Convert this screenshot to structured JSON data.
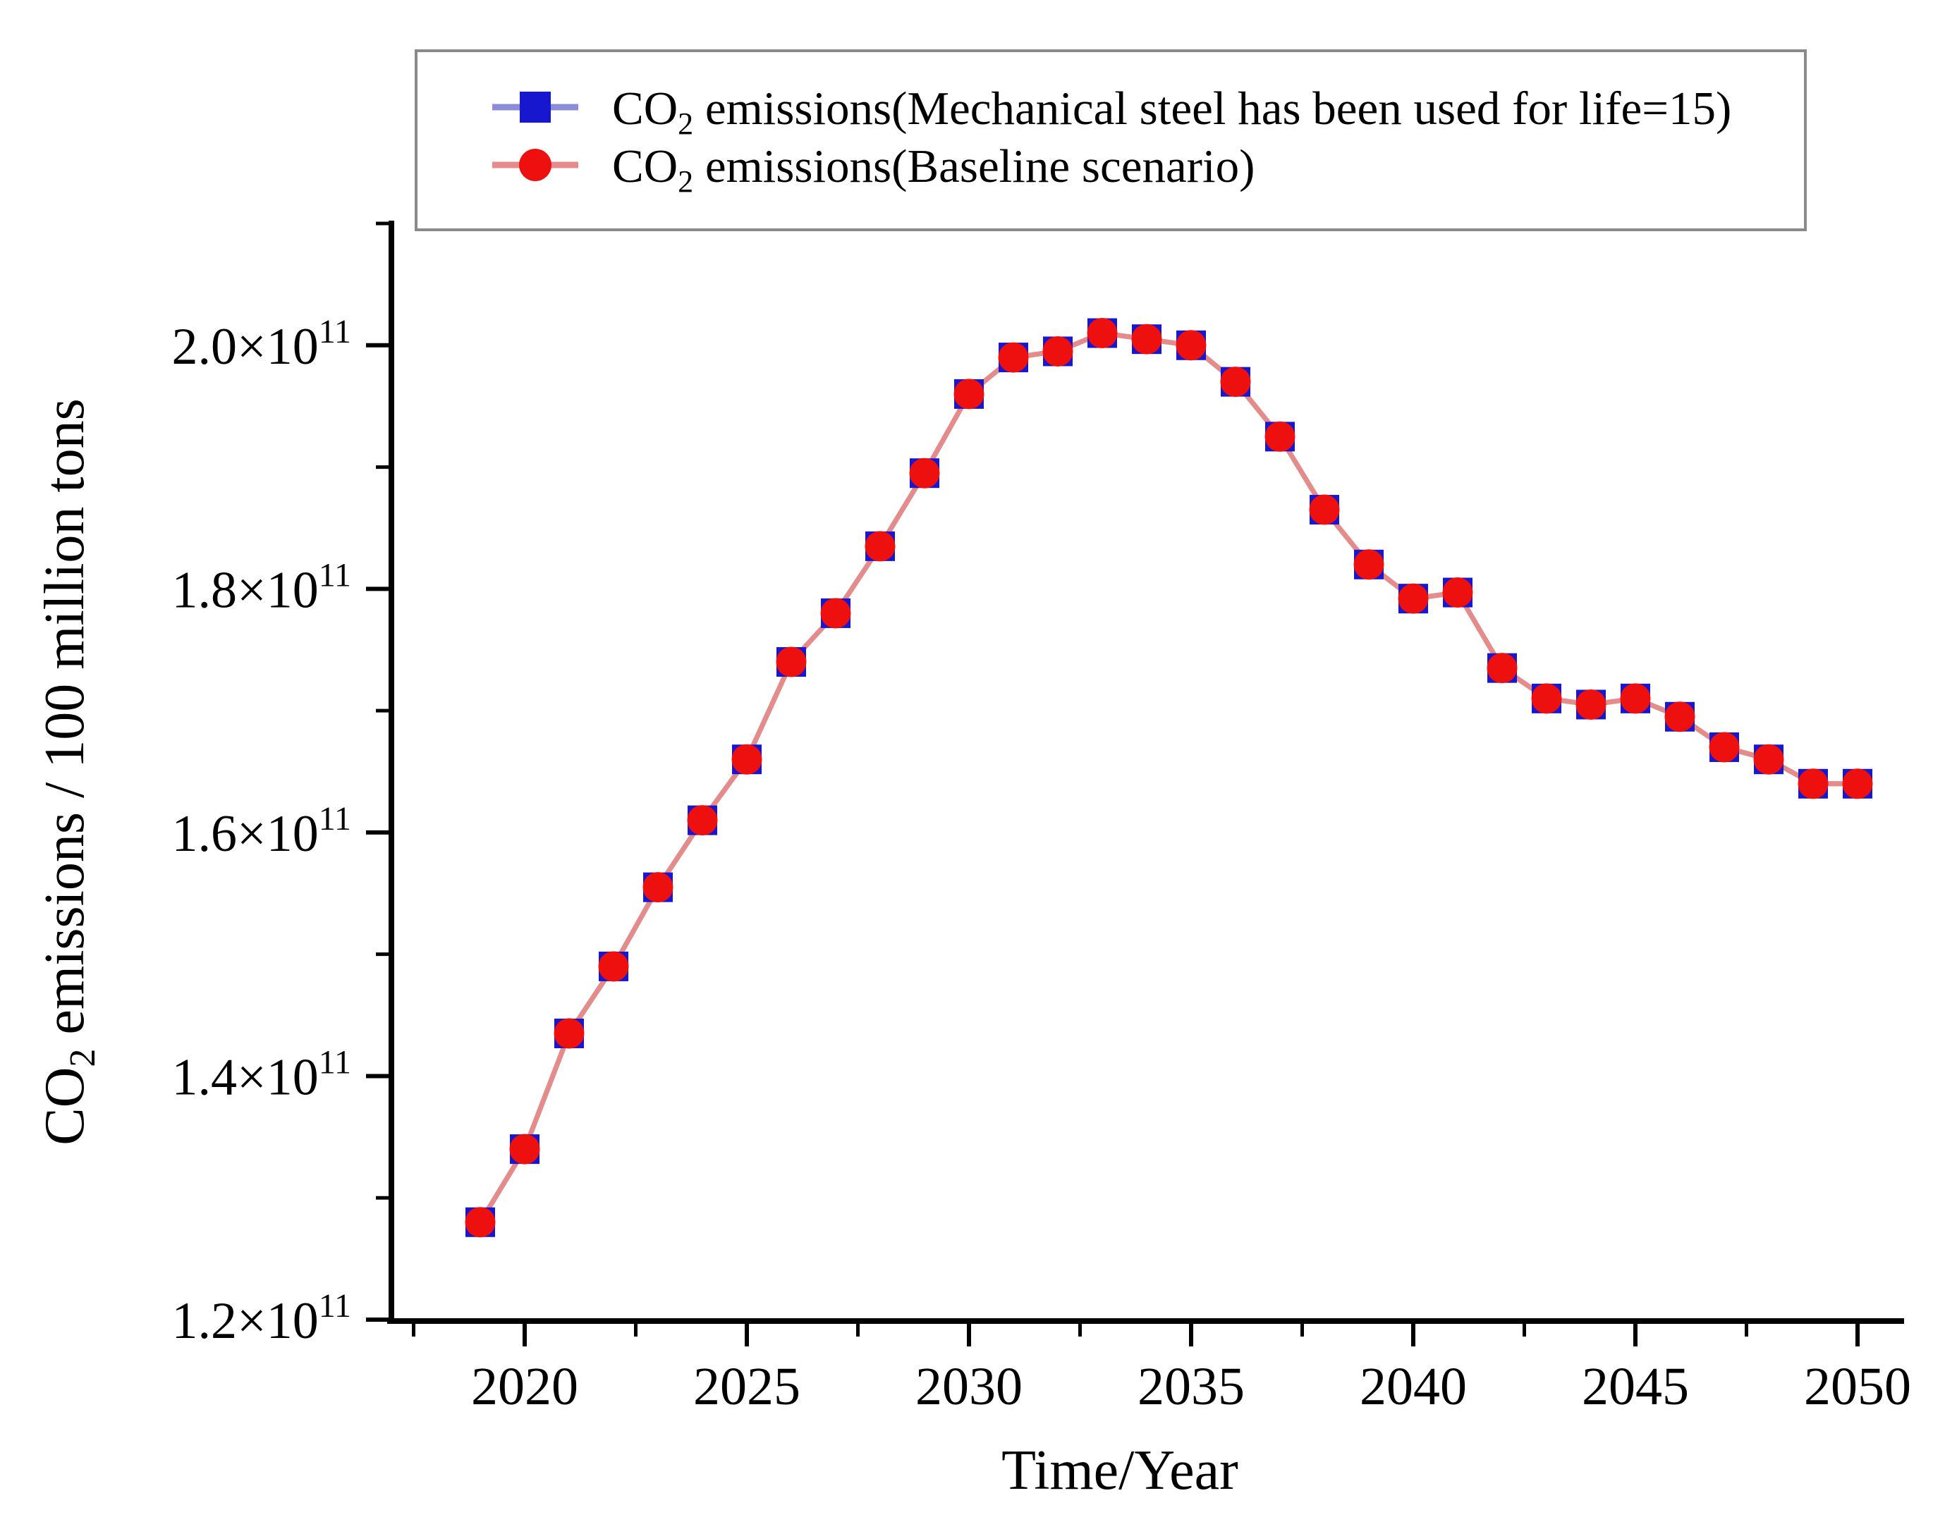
{
  "figure": {
    "background": "#ffffff",
    "border_gray": "#8a8a8a"
  },
  "legend": {
    "items": [
      {
        "pre": "CO",
        "sub": "2",
        "post": " emissions(Mechanical  steel has been used for life=15)",
        "marker": "square",
        "marker_color": "#1717d0",
        "line_color": "#8c8cd8"
      },
      {
        "pre": "CO",
        "sub": "2",
        "post": " emissions(Baseline  scenario)",
        "marker": "circle",
        "marker_color": "#ee0f0f",
        "line_color": "#e58c8a"
      }
    ]
  },
  "axes": {
    "x": {
      "title": "Time/Year"
    },
    "y": {
      "title_pre": "CO",
      "title_sub": "2",
      "title_post": " emissions / 100 million tons"
    }
  },
  "chart_data": {
    "type": "line",
    "title": "",
    "xlabel": "Time/Year",
    "ylabel": "CO2 emissions / 100 million tons",
    "grid": false,
    "legend_position": "top",
    "x": [
      2019,
      2020,
      2021,
      2022,
      2023,
      2024,
      2025,
      2026,
      2027,
      2028,
      2029,
      2030,
      2031,
      2032,
      2033,
      2034,
      2035,
      2036,
      2037,
      2038,
      2039,
      2040,
      2041,
      2042,
      2043,
      2044,
      2045,
      2046,
      2047,
      2048,
      2049,
      2050
    ],
    "series": [
      {
        "name": "CO2 emissions(Mechanical steel has been used for life=15)",
        "marker": "square",
        "color": "#1717d0",
        "line_color": "#8c8cd8",
        "values": [
          1.28,
          1.34,
          1.435,
          1.49,
          1.555,
          1.61,
          1.66,
          1.74,
          1.78,
          1.835,
          1.895,
          1.96,
          1.99,
          1.995,
          2.01,
          2.005,
          2.0,
          1.97,
          1.925,
          1.865,
          1.82,
          1.792,
          1.797,
          1.735,
          1.71,
          1.705,
          1.71,
          1.695,
          1.67,
          1.66,
          1.64,
          1.64
        ]
      },
      {
        "name": "CO2 emissions(Baseline scenario)",
        "marker": "circle",
        "color": "#ee0f0f",
        "line_color": "#e58c8a",
        "values": [
          1.28,
          1.34,
          1.435,
          1.49,
          1.555,
          1.61,
          1.66,
          1.74,
          1.78,
          1.835,
          1.895,
          1.96,
          1.99,
          1.995,
          2.01,
          2.005,
          2.0,
          1.97,
          1.925,
          1.865,
          1.82,
          1.792,
          1.797,
          1.735,
          1.71,
          1.705,
          1.71,
          1.695,
          1.67,
          1.66,
          1.64,
          1.64
        ]
      }
    ],
    "y_value_exponent": 11,
    "y_tick_suffix_base": "×10",
    "y_tick_suffix_exp": "11",
    "xlim": [
      2017,
      2051.5
    ],
    "ylim": [
      1.2,
      2.105
    ],
    "x_major_ticks": [
      2020,
      2025,
      2030,
      2035,
      2040,
      2045,
      2050
    ],
    "x_minor_ticks": [
      2017.5,
      2022.5,
      2027.5,
      2032.5,
      2037.5,
      2042.5,
      2047.5
    ],
    "y_major_ticks": [
      1.2,
      1.4,
      1.6,
      1.8,
      2.0
    ],
    "y_minor_ticks": [
      1.3,
      1.5,
      1.7,
      1.9,
      2.1
    ]
  }
}
